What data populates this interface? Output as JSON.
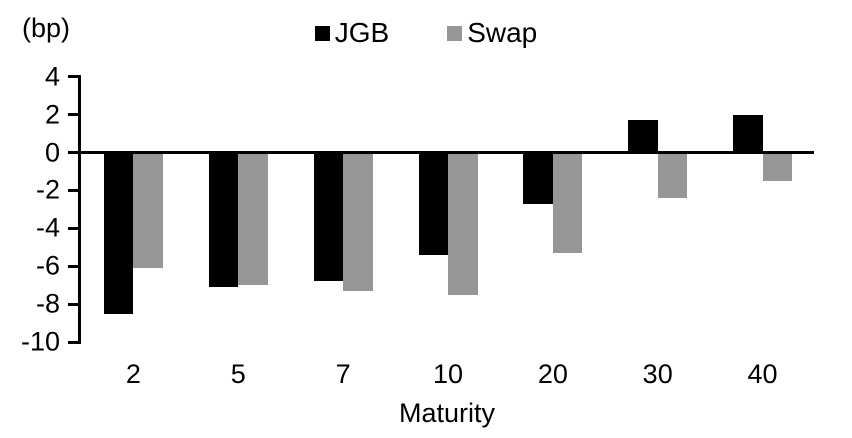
{
  "chart_data": {
    "type": "bar",
    "title": "",
    "ylabel_unit": "(bp)",
    "xlabel": "Maturity",
    "categories": [
      "2",
      "5",
      "7",
      "10",
      "20",
      "30",
      "40"
    ],
    "series": [
      {
        "name": "JGB",
        "color": "#000000",
        "values": [
          -8.5,
          -7.1,
          -6.8,
          -5.4,
          -2.7,
          1.7,
          2.0
        ]
      },
      {
        "name": "Swap",
        "color": "#969696",
        "values": [
          -6.1,
          -7.0,
          -7.3,
          -7.5,
          -5.3,
          -2.4,
          -1.5
        ]
      }
    ],
    "yticks": [
      4,
      2,
      0,
      -2,
      -4,
      -6,
      -8,
      -10
    ],
    "ylim": [
      -10,
      4
    ],
    "grid": false,
    "legend_position": "top-center",
    "axis_color": "#000000"
  }
}
